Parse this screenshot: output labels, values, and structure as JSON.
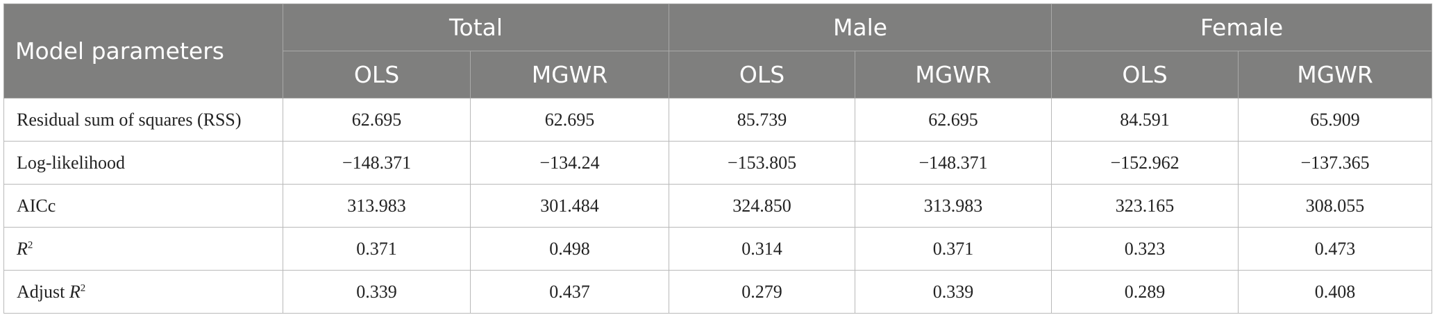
{
  "table": {
    "corner_header": "Model parameters",
    "groups": [
      "Total",
      "Male",
      "Female"
    ],
    "subheaders": [
      "OLS",
      "MGWR",
      "OLS",
      "MGWR",
      "OLS",
      "MGWR"
    ],
    "rows": [
      {
        "label": "Residual sum of squares (RSS)",
        "label_var": "",
        "label_sup": "",
        "values": [
          "62.695",
          "62.695",
          "85.739",
          "62.695",
          "84.591",
          "65.909"
        ]
      },
      {
        "label": "Log-likelihood",
        "label_var": "",
        "label_sup": "",
        "values": [
          "−148.371",
          "−134.24",
          "−153.805",
          "−148.371",
          "−152.962",
          "−137.365"
        ]
      },
      {
        "label": "AICc",
        "label_var": "",
        "label_sup": "",
        "values": [
          "313.983",
          "301.484",
          "324.850",
          "313.983",
          "323.165",
          "308.055"
        ]
      },
      {
        "label": "",
        "label_var": "R",
        "label_sup": "2",
        "values": [
          "0.371",
          "0.498",
          "0.314",
          "0.371",
          "0.323",
          "0.473"
        ]
      },
      {
        "label": "Adjust ",
        "label_var": "R",
        "label_sup": "2",
        "values": [
          "0.339",
          "0.437",
          "0.279",
          "0.339",
          "0.289",
          "0.408"
        ]
      }
    ]
  }
}
